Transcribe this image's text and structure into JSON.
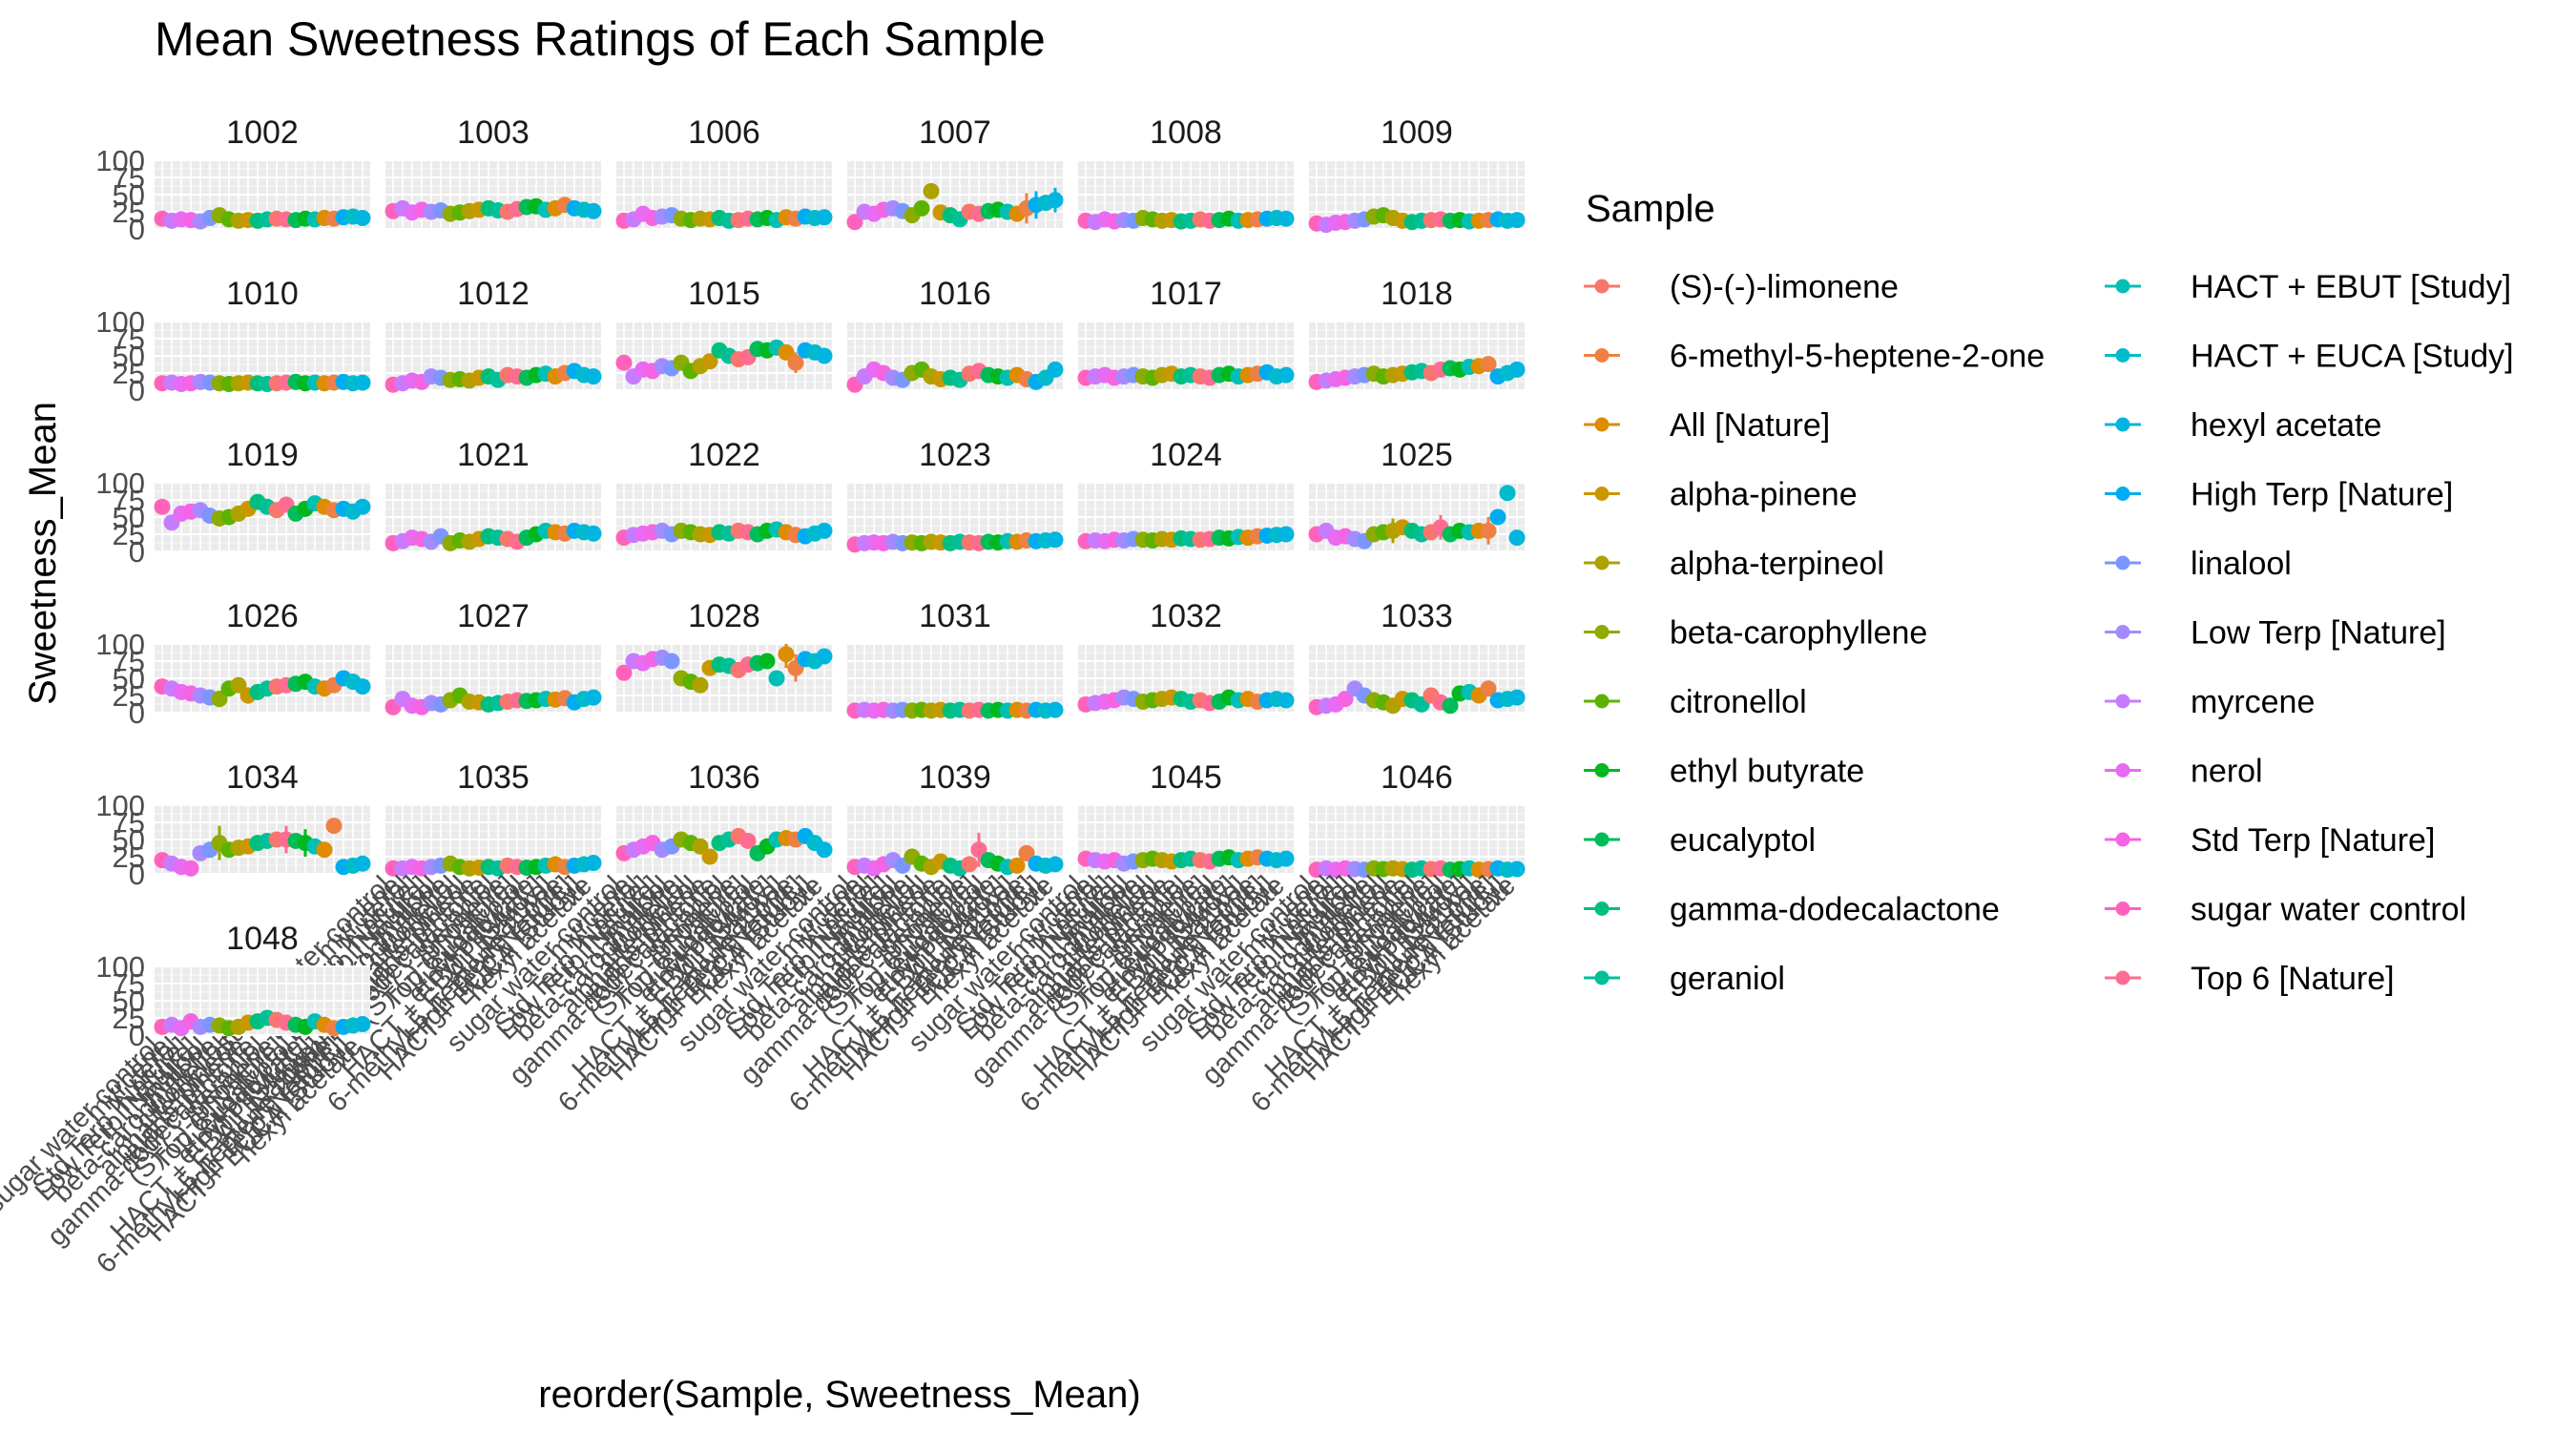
{
  "chart_data": {
    "type": "scatter",
    "title": "Mean Sweetness Ratings of Each Sample",
    "xlabel": "reorder(Sample, Sweetness_Mean)",
    "ylabel": "Sweetness_Mean",
    "ylim": [
      0,
      100
    ],
    "yticks": [
      "0",
      "25",
      "50",
      "75",
      "100"
    ],
    "grid": true,
    "legend_position": "right",
    "legend": {
      "title": "Sample",
      "entries": [
        {
          "label": "(S)-(-)-limonene",
          "color": "#F8766D"
        },
        {
          "label": "6-methyl-5-heptene-2-one",
          "color": "#EE8044"
        },
        {
          "label": "All [Nature]",
          "color": "#DE8C00"
        },
        {
          "label": "alpha-pinene",
          "color": "#C99800"
        },
        {
          "label": "alpha-terpineol",
          "color": "#AFA100"
        },
        {
          "label": "beta-carophyllene",
          "color": "#8DAB00"
        },
        {
          "label": "citronellol",
          "color": "#5BB300"
        },
        {
          "label": "ethyl butyrate",
          "color": "#00B81F"
        },
        {
          "label": "eucalyptol",
          "color": "#00BC59"
        },
        {
          "label": "gamma-dodecalactone",
          "color": "#00BF7D"
        },
        {
          "label": "geraniol",
          "color": "#00C09A"
        },
        {
          "label": "HACT + EBUT [Study]",
          "color": "#00BFB4"
        },
        {
          "label": "HACT + EUCA [Study]",
          "color": "#00BBCB"
        },
        {
          "label": "hexyl acetate",
          "color": "#00B5DF"
        },
        {
          "label": "High Terp [Nature]",
          "color": "#00ACF1"
        },
        {
          "label": "linalool",
          "color": "#7C96FF"
        },
        {
          "label": "Low Terp [Nature]",
          "color": "#A58AFF"
        },
        {
          "label": "myrcene",
          "color": "#C77CFF"
        },
        {
          "label": "nerol",
          "color": "#E76BF3"
        },
        {
          "label": "Std Terp [Nature]",
          "color": "#F564E3"
        },
        {
          "label": "sugar water control",
          "color": "#FF62BC"
        },
        {
          "label": "Top 6 [Nature]",
          "color": "#FF6C91"
        }
      ]
    },
    "x_categories": [
      "sugar water control",
      "myrcene",
      "nerol",
      "Std Terp [Nature]",
      "Low Terp [Nature]",
      "linalool",
      "beta-carophyllene",
      "citronellol",
      "alpha-terpineol",
      "alpha-pinene",
      "gamma-dodecalactone",
      "geraniol",
      "(S)-(-)-limonene",
      "Top 6 [Nature]",
      "eucalyptol",
      "ethyl butyrate",
      "HACT + EBUT [Study]",
      "All [Nature]",
      "6-methyl-5-heptene-2-one",
      "High Terp [Nature]",
      "HACT + EUCA [Study]",
      "hexyl acetate"
    ],
    "point_color_order": [
      20,
      17,
      18,
      19,
      16,
      15,
      5,
      6,
      4,
      3,
      9,
      10,
      0,
      21,
      8,
      7,
      11,
      2,
      1,
      14,
      12,
      13
    ],
    "panels": [
      {
        "id": "1002",
        "values": [
          15,
          12,
          14,
          13,
          11,
          16,
          20,
          14,
          12,
          13,
          12,
          14,
          15,
          14,
          13,
          15,
          14,
          16,
          15,
          17,
          18,
          16
        ],
        "errors": []
      },
      {
        "id": "1003",
        "values": [
          26,
          30,
          24,
          28,
          25,
          27,
          22,
          24,
          26,
          28,
          30,
          27,
          25,
          29,
          32,
          33,
          28,
          30,
          35,
          30,
          28,
          26
        ],
        "errors": [
          [
            15,
            6
          ],
          [
            20,
            8
          ]
        ]
      },
      {
        "id": "1006",
        "values": [
          12,
          14,
          22,
          16,
          18,
          20,
          15,
          13,
          15,
          14,
          16,
          12,
          13,
          15,
          14,
          16,
          13,
          17,
          15,
          18,
          16,
          17
        ],
        "errors": []
      },
      {
        "id": "1007",
        "values": [
          10,
          25,
          22,
          28,
          30,
          26,
          20,
          30,
          55,
          24,
          20,
          14,
          25,
          22,
          26,
          28,
          25,
          22,
          30,
          35,
          38,
          42
        ],
        "errors": [
          [
            18,
            22
          ],
          [
            19,
            20
          ],
          [
            21,
            18
          ]
        ]
      },
      {
        "id": "1008",
        "values": [
          12,
          10,
          14,
          11,
          13,
          12,
          16,
          14,
          12,
          13,
          11,
          12,
          14,
          12,
          13,
          15,
          12,
          13,
          14,
          15,
          16,
          15
        ],
        "errors": []
      },
      {
        "id": "1009",
        "values": [
          8,
          6,
          9,
          10,
          12,
          14,
          18,
          20,
          16,
          12,
          10,
          12,
          13,
          14,
          12,
          13,
          11,
          12,
          13,
          14,
          12,
          13
        ],
        "errors": []
      },
      {
        "id": "1010",
        "values": [
          10,
          11,
          9,
          10,
          12,
          11,
          10,
          9,
          10,
          11,
          10,
          9,
          10,
          11,
          12,
          10,
          11,
          10,
          11,
          12,
          10,
          11
        ],
        "errors": []
      },
      {
        "id": "1012",
        "values": [
          8,
          10,
          14,
          12,
          20,
          18,
          15,
          16,
          14,
          18,
          20,
          15,
          22,
          20,
          18,
          22,
          24,
          20,
          25,
          28,
          22,
          20
        ],
        "errors": []
      },
      {
        "id": "1015",
        "values": [
          40,
          20,
          30,
          28,
          35,
          32,
          40,
          28,
          35,
          42,
          58,
          50,
          45,
          48,
          60,
          58,
          62,
          55,
          40,
          58,
          55,
          50
        ],
        "errors": [
          [
            18,
            15
          ]
        ]
      },
      {
        "id": "1016",
        "values": [
          8,
          20,
          30,
          25,
          18,
          15,
          25,
          30,
          20,
          16,
          18,
          15,
          24,
          28,
          22,
          20,
          18,
          22,
          16,
          12,
          18,
          30
        ],
        "errors": []
      },
      {
        "id": "1017",
        "values": [
          18,
          20,
          22,
          18,
          20,
          22,
          20,
          18,
          22,
          24,
          20,
          22,
          20,
          18,
          22,
          24,
          20,
          22,
          24,
          26,
          20,
          22
        ],
        "errors": []
      },
      {
        "id": "1018",
        "values": [
          12,
          14,
          16,
          18,
          20,
          22,
          24,
          20,
          22,
          24,
          26,
          28,
          25,
          30,
          32,
          30,
          34,
          35,
          38,
          20,
          25,
          30
        ],
        "errors": []
      },
      {
        "id": "1019",
        "values": [
          65,
          42,
          55,
          58,
          60,
          52,
          48,
          50,
          55,
          62,
          72,
          65,
          60,
          68,
          55,
          62,
          70,
          65,
          60,
          62,
          58,
          65
        ],
        "errors": []
      },
      {
        "id": "1021",
        "values": [
          12,
          15,
          20,
          18,
          14,
          22,
          12,
          16,
          14,
          18,
          22,
          20,
          18,
          14,
          20,
          25,
          30,
          28,
          26,
          30,
          28,
          26
        ],
        "errors": [
          [
            18,
            10
          ]
        ]
      },
      {
        "id": "1022",
        "values": [
          20,
          24,
          26,
          28,
          30,
          25,
          30,
          28,
          25,
          24,
          28,
          26,
          30,
          28,
          25,
          30,
          32,
          28,
          24,
          22,
          26,
          30
        ],
        "errors": [
          [
            16,
            8
          ]
        ]
      },
      {
        "id": "1023",
        "values": [
          10,
          12,
          13,
          12,
          14,
          12,
          13,
          12,
          14,
          13,
          12,
          14,
          13,
          12,
          14,
          13,
          15,
          14,
          16,
          15,
          16,
          17
        ],
        "errors": []
      },
      {
        "id": "1024",
        "values": [
          15,
          16,
          15,
          17,
          16,
          18,
          17,
          16,
          18,
          17,
          19,
          18,
          17,
          18,
          20,
          19,
          21,
          20,
          22,
          23,
          24,
          25
        ],
        "errors": []
      },
      {
        "id": "1025",
        "values": [
          25,
          30,
          20,
          22,
          18,
          15,
          25,
          28,
          30,
          35,
          30,
          25,
          28,
          35,
          25,
          30,
          28,
          30,
          30,
          50,
          85,
          20
        ],
        "errors": [
          [
            8,
            18
          ],
          [
            13,
            18
          ],
          [
            18,
            20
          ]
        ]
      },
      {
        "id": "1026",
        "values": [
          38,
          35,
          30,
          28,
          25,
          22,
          20,
          35,
          40,
          25,
          30,
          35,
          38,
          40,
          42,
          45,
          38,
          35,
          40,
          50,
          45,
          38
        ],
        "errors": [
          [
            6,
            12
          ],
          [
            9,
            12
          ]
        ]
      },
      {
        "id": "1027",
        "values": [
          8,
          20,
          10,
          8,
          14,
          12,
          18,
          25,
          16,
          15,
          12,
          14,
          16,
          18,
          17,
          18,
          20,
          19,
          21,
          15,
          20,
          22
        ],
        "errors": []
      },
      {
        "id": "1028",
        "values": [
          58,
          75,
          72,
          78,
          80,
          75,
          50,
          45,
          40,
          65,
          70,
          68,
          62,
          70,
          72,
          75,
          50,
          85,
          65,
          78,
          75,
          82
        ],
        "errors": [
          [
            17,
            20
          ],
          [
            18,
            20
          ]
        ]
      },
      {
        "id": "1031",
        "values": [
          3,
          4,
          3,
          4,
          3,
          4,
          3,
          4,
          3,
          4,
          3,
          4,
          3,
          4,
          3,
          4,
          3,
          4,
          3,
          4,
          3,
          4
        ],
        "errors": []
      },
      {
        "id": "1032",
        "values": [
          12,
          14,
          16,
          18,
          22,
          20,
          16,
          18,
          20,
          22,
          20,
          16,
          18,
          14,
          16,
          22,
          18,
          20,
          16,
          18,
          20,
          18
        ],
        "errors": [
          [
            4,
            8
          ]
        ]
      },
      {
        "id": "1033",
        "values": [
          8,
          10,
          12,
          20,
          35,
          25,
          18,
          15,
          10,
          20,
          18,
          12,
          25,
          15,
          10,
          28,
          30,
          25,
          35,
          18,
          20,
          22
        ],
        "errors": [
          [
            10,
            10
          ],
          [
            17,
            10
          ]
        ]
      },
      {
        "id": "1034",
        "values": [
          20,
          15,
          10,
          8,
          30,
          35,
          45,
          35,
          38,
          40,
          45,
          48,
          50,
          50,
          48,
          45,
          40,
          35,
          70,
          10,
          12,
          15
        ],
        "errors": [
          [
            6,
            25
          ],
          [
            13,
            20
          ],
          [
            15,
            20
          ]
        ]
      },
      {
        "id": "1035",
        "values": [
          8,
          8,
          10,
          8,
          10,
          12,
          15,
          10,
          8,
          9,
          10,
          8,
          12,
          10,
          9,
          10,
          12,
          14,
          10,
          12,
          14,
          16
        ],
        "errors": []
      },
      {
        "id": "1036",
        "values": [
          30,
          35,
          40,
          45,
          35,
          40,
          50,
          45,
          40,
          25,
          45,
          50,
          55,
          48,
          30,
          40,
          50,
          52,
          50,
          55,
          45,
          35
        ],
        "errors": [
          [
            4,
            10
          ],
          [
            8,
            10
          ]
        ]
      },
      {
        "id": "1039",
        "values": [
          10,
          12,
          8,
          14,
          20,
          12,
          25,
          15,
          10,
          18,
          12,
          8,
          14,
          35,
          20,
          15,
          10,
          12,
          30,
          15,
          12,
          14
        ],
        "errors": [
          [
            13,
            25
          ],
          [
            18,
            12
          ]
        ]
      },
      {
        "id": "1045",
        "values": [
          22,
          20,
          18,
          20,
          15,
          18,
          20,
          22,
          20,
          18,
          20,
          22,
          20,
          18,
          22,
          24,
          20,
          22,
          24,
          22,
          20,
          22
        ],
        "errors": []
      },
      {
        "id": "1046",
        "values": [
          6,
          8,
          6,
          8,
          7,
          6,
          8,
          7,
          8,
          7,
          6,
          8,
          7,
          8,
          6,
          7,
          8,
          6,
          7,
          8,
          6,
          7
        ],
        "errors": []
      },
      {
        "id": "1048",
        "values": [
          12,
          15,
          10,
          20,
          12,
          15,
          14,
          10,
          12,
          18,
          20,
          25,
          22,
          18,
          15,
          12,
          20,
          15,
          10,
          12,
          14,
          16
        ],
        "errors": []
      }
    ]
  }
}
